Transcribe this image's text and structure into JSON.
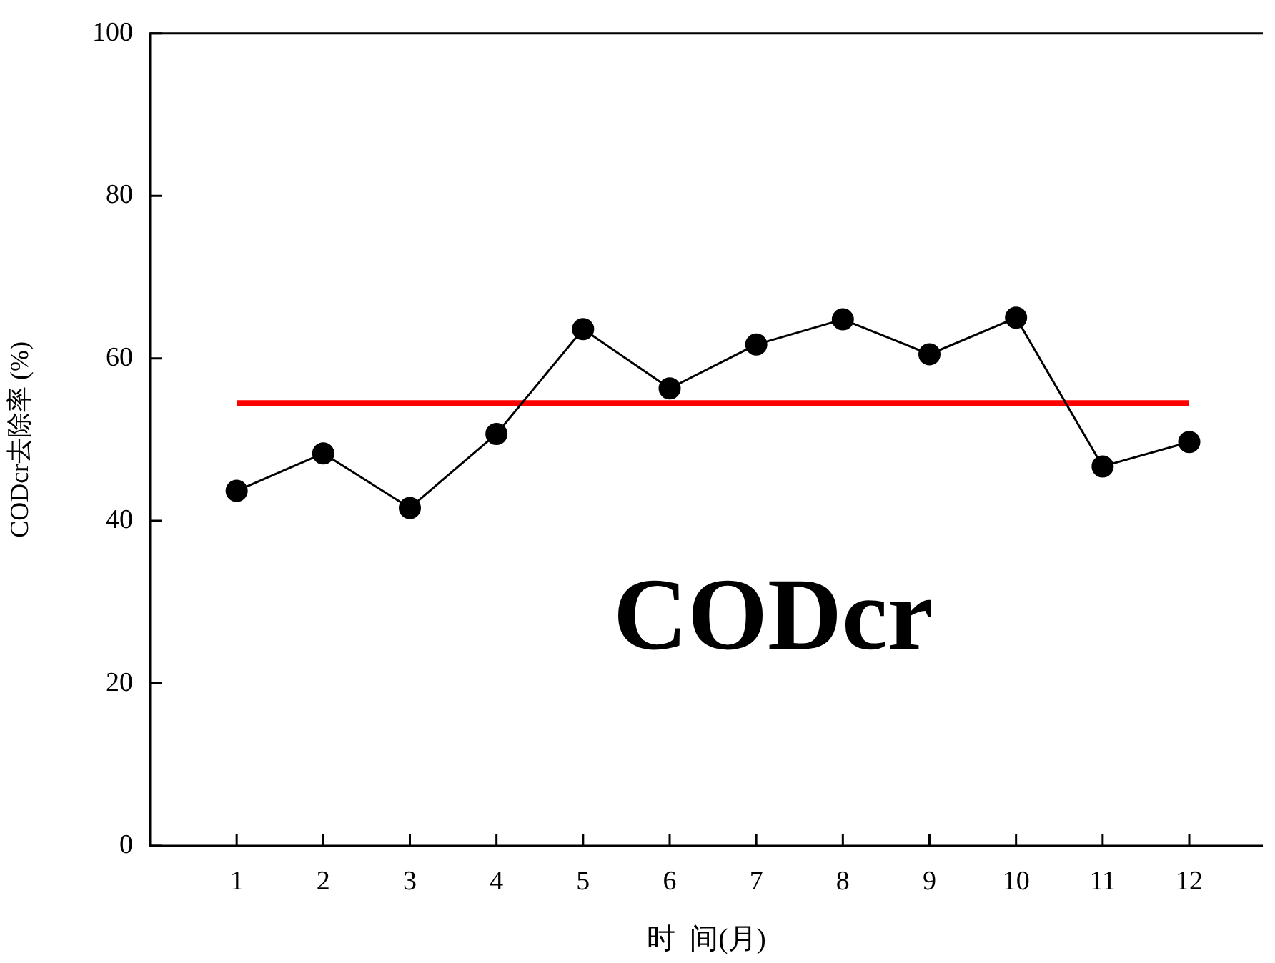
{
  "chart_data": {
    "type": "line",
    "xlabel": "时  间(月)",
    "ylabel": "CODcr去除率 (%)",
    "x": [
      1,
      2,
      3,
      4,
      5,
      6,
      7,
      8,
      9,
      10,
      11,
      12
    ],
    "xlim": [
      0,
      12.85
    ],
    "xticks": [
      1,
      2,
      3,
      4,
      5,
      6,
      7,
      8,
      9,
      10,
      11,
      12
    ],
    "ylim": [
      0,
      100
    ],
    "yticks": [
      0,
      20,
      40,
      60,
      80,
      100
    ],
    "grid": false,
    "marker": "circle",
    "line_style": "solid",
    "series": [
      {
        "color": "#000000",
        "values": [
          43.7,
          48.3,
          41.6,
          50.7,
          63.6,
          56.3,
          61.7,
          64.8,
          60.5,
          65.0,
          46.7,
          49.7
        ]
      },
      {
        "type": "line",
        "color": "#ff0000",
        "marker": "none",
        "x": [
          1,
          12
        ],
        "values": [
          54.5,
          54.5
        ]
      }
    ],
    "annotations": [
      "CODcr"
    ]
  }
}
